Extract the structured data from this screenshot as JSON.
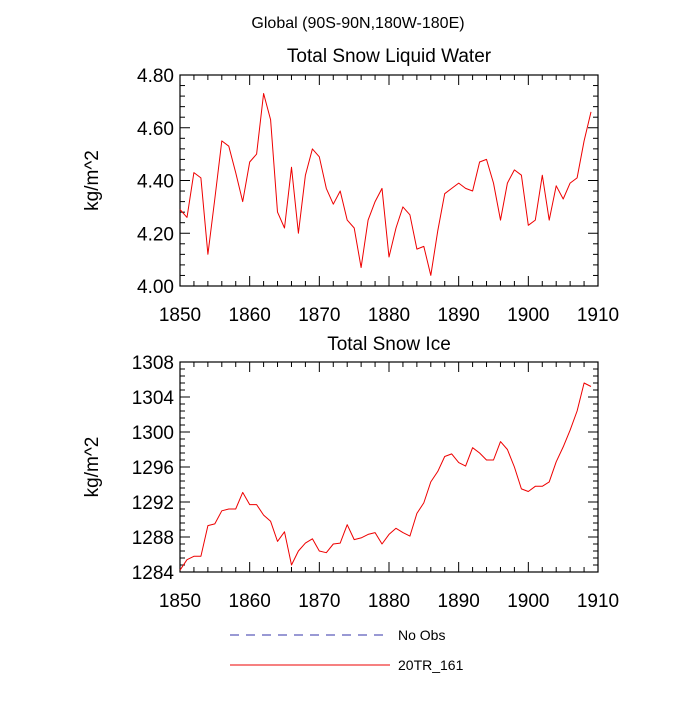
{
  "figure_title": "Global (90S-90N,180W-180E)",
  "legend": {
    "entries": [
      {
        "label": "No Obs",
        "color": "#3333aa",
        "style": "dashed"
      },
      {
        "label": "20TR_161",
        "color": "#ee0000",
        "style": "solid"
      }
    ]
  },
  "chart_data": [
    {
      "type": "line",
      "title": "Total Snow Liquid Water",
      "xlabel": "",
      "ylabel": "kg/m^2",
      "xlim": [
        1850,
        1910
      ],
      "ylim": [
        4.0,
        4.8
      ],
      "xticks": [
        1850,
        1860,
        1870,
        1880,
        1890,
        1900,
        1910
      ],
      "xtick_labels": [
        "1850",
        "1860",
        "1870",
        "1880",
        "1890",
        "1900",
        "1910"
      ],
      "yticks": [
        4.0,
        4.2,
        4.4,
        4.6,
        4.8
      ],
      "ytick_labels": [
        "4.00",
        "4.20",
        "4.40",
        "4.60",
        "4.80"
      ],
      "series": [
        {
          "name": "20TR_161",
          "color": "#ee0000",
          "x": [
            1850,
            1851,
            1852,
            1853,
            1854,
            1855,
            1856,
            1857,
            1858,
            1859,
            1860,
            1861,
            1862,
            1863,
            1864,
            1865,
            1866,
            1867,
            1868,
            1869,
            1870,
            1871,
            1872,
            1873,
            1874,
            1875,
            1876,
            1877,
            1878,
            1879,
            1880,
            1881,
            1882,
            1883,
            1884,
            1885,
            1886,
            1887,
            1888,
            1889,
            1890,
            1891,
            1892,
            1893,
            1894,
            1895,
            1896,
            1897,
            1898,
            1899,
            1900,
            1901,
            1902,
            1903,
            1904,
            1905,
            1906,
            1907,
            1908,
            1909
          ],
          "values": [
            4.29,
            4.26,
            4.43,
            4.41,
            4.12,
            4.33,
            4.55,
            4.53,
            4.43,
            4.32,
            4.47,
            4.5,
            4.73,
            4.63,
            4.28,
            4.22,
            4.45,
            4.2,
            4.42,
            4.52,
            4.49,
            4.37,
            4.31,
            4.36,
            4.25,
            4.22,
            4.07,
            4.25,
            4.32,
            4.37,
            4.11,
            4.22,
            4.3,
            4.27,
            4.14,
            4.15,
            4.04,
            4.21,
            4.35,
            4.37,
            4.39,
            4.37,
            4.36,
            4.47,
            4.48,
            4.39,
            4.25,
            4.39,
            4.44,
            4.42,
            4.23,
            4.25,
            4.42,
            4.25,
            4.38,
            4.33,
            4.39,
            4.41,
            4.55,
            4.66
          ]
        }
      ]
    },
    {
      "type": "line",
      "title": "Total Snow Ice",
      "xlabel": "",
      "ylabel": "kg/m^2",
      "xlim": [
        1850,
        1910
      ],
      "ylim": [
        1284,
        1308
      ],
      "xticks": [
        1850,
        1860,
        1870,
        1880,
        1890,
        1900,
        1910
      ],
      "xtick_labels": [
        "1850",
        "1860",
        "1870",
        "1880",
        "1890",
        "1900",
        "1910"
      ],
      "yticks": [
        1284,
        1288,
        1292,
        1296,
        1300,
        1304,
        1308
      ],
      "ytick_labels": [
        "1284",
        "1288",
        "1292",
        "1296",
        "1300",
        "1304",
        "1308"
      ],
      "series": [
        {
          "name": "20TR_161",
          "color": "#ee0000",
          "x": [
            1850,
            1851,
            1852,
            1853,
            1854,
            1855,
            1856,
            1857,
            1858,
            1859,
            1860,
            1861,
            1862,
            1863,
            1864,
            1865,
            1866,
            1867,
            1868,
            1869,
            1870,
            1871,
            1872,
            1873,
            1874,
            1875,
            1876,
            1877,
            1878,
            1879,
            1880,
            1881,
            1882,
            1883,
            1884,
            1885,
            1886,
            1887,
            1888,
            1889,
            1890,
            1891,
            1892,
            1893,
            1894,
            1895,
            1896,
            1897,
            1898,
            1899,
            1900,
            1901,
            1902,
            1903,
            1904,
            1905,
            1906,
            1907,
            1908,
            1909
          ],
          "values": [
            1284.2,
            1285.4,
            1285.8,
            1285.8,
            1289.3,
            1289.5,
            1291.0,
            1291.2,
            1291.2,
            1293.1,
            1291.7,
            1291.7,
            1290.5,
            1289.8,
            1287.5,
            1288.6,
            1284.8,
            1286.4,
            1287.3,
            1287.8,
            1286.4,
            1286.2,
            1287.2,
            1287.3,
            1289.4,
            1287.7,
            1287.9,
            1288.3,
            1288.5,
            1287.2,
            1288.3,
            1289.0,
            1288.5,
            1288.1,
            1290.7,
            1291.9,
            1294.3,
            1295.5,
            1297.2,
            1297.5,
            1296.5,
            1296.1,
            1298.2,
            1297.6,
            1296.8,
            1296.8,
            1298.9,
            1298.0,
            1296.0,
            1293.5,
            1293.2,
            1293.8,
            1293.8,
            1294.3,
            1296.6,
            1298.3,
            1300.2,
            1302.4,
            1305.6,
            1305.2
          ]
        }
      ]
    }
  ]
}
